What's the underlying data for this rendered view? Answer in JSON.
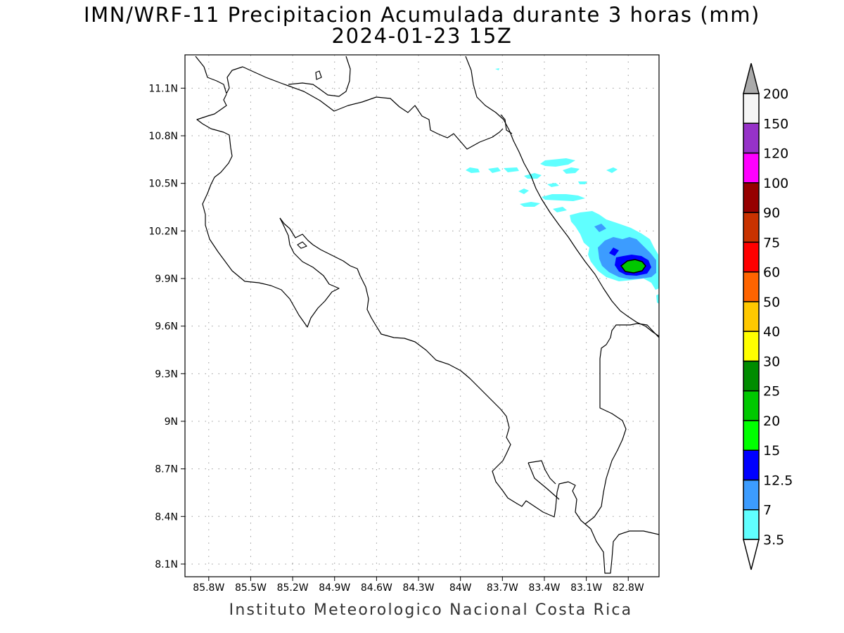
{
  "title": {
    "line1": "IMN/WRF-11 Precipitacion Acumulada durante 3 horas (mm)",
    "line2": "2024-01-23 15Z"
  },
  "credit": "Instituto Meteorologico Nacional Costa Rica",
  "map": {
    "lon_range": [
      -85.97,
      -82.58
    ],
    "lat_range": [
      8.02,
      11.31
    ],
    "lat_ticks": [
      "11.1N",
      "10.8N",
      "10.5N",
      "10.2N",
      "9.9N",
      "9.6N",
      "9.3N",
      "9N",
      "8.7N",
      "8.4N",
      "8.1N"
    ],
    "lat_values": [
      11.1,
      10.8,
      10.5,
      10.2,
      9.9,
      9.6,
      9.3,
      9.0,
      8.7,
      8.4,
      8.1
    ],
    "lon_ticks": [
      "85.8W",
      "85.5W",
      "85.2W",
      "84.9W",
      "84.6W",
      "84.3W",
      "84W",
      "83.7W",
      "83.4W",
      "83.1W",
      "82.8W"
    ],
    "lon_values": [
      -85.8,
      -85.5,
      -85.2,
      -84.9,
      -84.6,
      -84.3,
      -84.0,
      -83.7,
      -83.4,
      -83.1,
      -82.8
    ],
    "gridlines": "dotted"
  },
  "colorbar": {
    "levels": [
      "3.5",
      "7",
      "12.5",
      "15",
      "20",
      "25",
      "30",
      "40",
      "50",
      "60",
      "75",
      "90",
      "100",
      "120",
      "150",
      "200"
    ],
    "colors": [
      "#60ffff",
      "#3c9cff",
      "#0000ff",
      "#00ff00",
      "#00c800",
      "#008c00",
      "#ffff00",
      "#ffc800",
      "#ff6400",
      "#ff0000",
      "#c83200",
      "#960000",
      "#ff00ff",
      "#9632c8",
      "#f5f5f5"
    ],
    "over_color": "#aaaaaa",
    "under_color": "#ffffff"
  }
}
